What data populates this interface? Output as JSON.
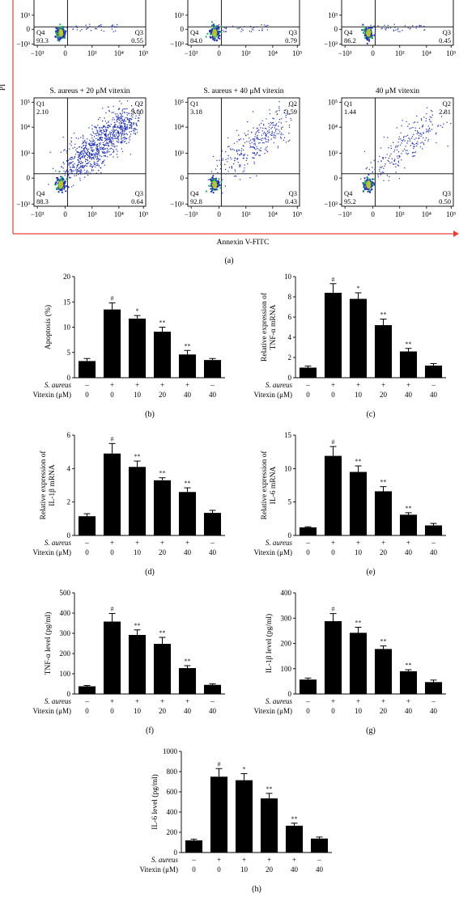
{
  "flow": {
    "ylabel": "PI",
    "xlabel": "Annexin V-FITC",
    "panel_label": "(a)",
    "axis_ticks_x": [
      "−10³",
      "0",
      "10³",
      "10⁴",
      "10⁵"
    ],
    "axis_ticks_y": [
      "10⁵",
      "10⁴",
      "10³",
      "0",
      "−10³"
    ],
    "plots": [
      {
        "title": "",
        "q1": "",
        "q1v": "",
        "q2": "",
        "q2v": "",
        "q4": "Q4",
        "q4v": "93.3",
        "q3": "Q3",
        "q3v": "0.55"
      },
      {
        "title": "",
        "q1": "",
        "q1v": "",
        "q2": "",
        "q2v": "",
        "q4": "Q4",
        "q4v": "84.0",
        "q3": "Q3",
        "q3v": "0.79"
      },
      {
        "title": "",
        "q1": "",
        "q1v": "",
        "q2": "",
        "q2v": "",
        "q4": "Q4",
        "q4v": "86.2",
        "q3": "Q3",
        "q3v": "0.45"
      },
      {
        "title": "S. aureus + 20 μM vitexin",
        "q1": "Q1",
        "q1v": "2.10",
        "q2": "Q2",
        "q2v": "9.00",
        "q4": "Q4",
        "q4v": "88.3",
        "q3": "Q3",
        "q3v": "0.64"
      },
      {
        "title": "S. aureus + 40 μM vitexin",
        "q1": "Q1",
        "q1v": "3.18",
        "q2": "Q2",
        "q2v": "3.59",
        "q4": "Q4",
        "q4v": "92.8",
        "q3": "Q3",
        "q3v": "0.43"
      },
      {
        "title": "40 μM vitexin",
        "q1": "Q1",
        "q1v": "1.44",
        "q2": "Q2",
        "q2v": "2.81",
        "q4": "Q4",
        "q4v": "95.2",
        "q3": "Q3",
        "q3v": "0.50"
      }
    ]
  },
  "chart_data": [
    {
      "type": "bar",
      "panel": "(b)",
      "ylabel": "Apoptosis (%)",
      "ylim": [
        0,
        20
      ],
      "yticks": [
        "0",
        "5",
        "10",
        "15",
        "20"
      ],
      "values": [
        3.3,
        13.5,
        11.7,
        9.1,
        4.6,
        3.5
      ],
      "errors": [
        0.5,
        1.3,
        0.6,
        0.9,
        0.8,
        0.3
      ],
      "marks": [
        "",
        "#",
        "*",
        "**",
        "**",
        ""
      ]
    },
    {
      "type": "bar",
      "panel": "(c)",
      "ylabel": "Relative expression of",
      "ylabel2": "TNF-α mRNA",
      "ylim": [
        0,
        10
      ],
      "yticks": [
        "0",
        "2",
        "4",
        "6",
        "8",
        "10"
      ],
      "values": [
        1.0,
        8.4,
        7.8,
        5.2,
        2.6,
        1.2
      ],
      "errors": [
        0.15,
        0.9,
        0.6,
        0.6,
        0.3,
        0.2
      ],
      "marks": [
        "",
        "#",
        "*",
        "**",
        "**",
        ""
      ]
    },
    {
      "type": "bar",
      "panel": "(d)",
      "ylabel": "Relative expression of",
      "ylabel2": "IL-1β mRNA",
      "ylim": [
        0,
        6
      ],
      "yticks": [
        "0",
        "2",
        "4",
        "6"
      ],
      "values": [
        1.15,
        4.9,
        4.1,
        3.3,
        2.6,
        1.35
      ],
      "errors": [
        0.15,
        0.6,
        0.35,
        0.15,
        0.25,
        0.15
      ],
      "marks": [
        "",
        "#",
        "**",
        "**",
        "**",
        ""
      ]
    },
    {
      "type": "bar",
      "panel": "(e)",
      "ylabel": "Relative expression of",
      "ylabel2": "IL-6 mRNA",
      "ylim": [
        0,
        15
      ],
      "yticks": [
        "0",
        "5",
        "10",
        "15"
      ],
      "values": [
        1.2,
        11.9,
        9.5,
        6.6,
        3.1,
        1.5
      ],
      "errors": [
        0.1,
        1.4,
        0.9,
        0.7,
        0.3,
        0.3
      ],
      "marks": [
        "",
        "#",
        "**",
        "**",
        "**",
        ""
      ]
    },
    {
      "type": "bar",
      "panel": "(f)",
      "ylabel": "TNF-α level (pg/ml)",
      "ylim": [
        0,
        500
      ],
      "yticks": [
        "0",
        "100",
        "200",
        "300",
        "400",
        "500"
      ],
      "values": [
        38,
        358,
        292,
        248,
        128,
        45
      ],
      "errors": [
        4,
        40,
        25,
        32,
        12,
        5
      ],
      "marks": [
        "",
        "#",
        "**",
        "**",
        "**",
        ""
      ]
    },
    {
      "type": "bar",
      "panel": "(g)",
      "ylabel": "IL-1β level (pg/ml)",
      "ylim": [
        0,
        400
      ],
      "yticks": [
        "0",
        "100",
        "200",
        "300",
        "400"
      ],
      "values": [
        57,
        288,
        242,
        178,
        90,
        47
      ],
      "errors": [
        6,
        30,
        22,
        12,
        6,
        8
      ],
      "marks": [
        "",
        "#",
        "**",
        "**",
        "**",
        ""
      ]
    },
    {
      "type": "bar",
      "panel": "(h)",
      "ylabel": "IL-6 level (pg/ml)",
      "ylim": [
        0,
        1000
      ],
      "yticks": [
        "0",
        "200",
        "400",
        "600",
        "800",
        "1000"
      ],
      "values": [
        120,
        750,
        715,
        535,
        265,
        138
      ],
      "errors": [
        12,
        80,
        65,
        50,
        25,
        15
      ],
      "marks": [
        "",
        "#",
        "*",
        "**",
        "**",
        ""
      ]
    }
  ],
  "conditions": {
    "row1_label": "S. aureus",
    "row2_label": "Vitexin (μM)",
    "saureus": [
      "–",
      "+",
      "+",
      "+",
      "+",
      "–"
    ],
    "vitexin": [
      "0",
      "0",
      "10",
      "20",
      "40",
      "40"
    ]
  },
  "colors": {
    "bar": "#000000",
    "dot": "#2233aa",
    "core": "#22aa66",
    "core_hot": "#dddd22",
    "frame": "#e8413a"
  }
}
